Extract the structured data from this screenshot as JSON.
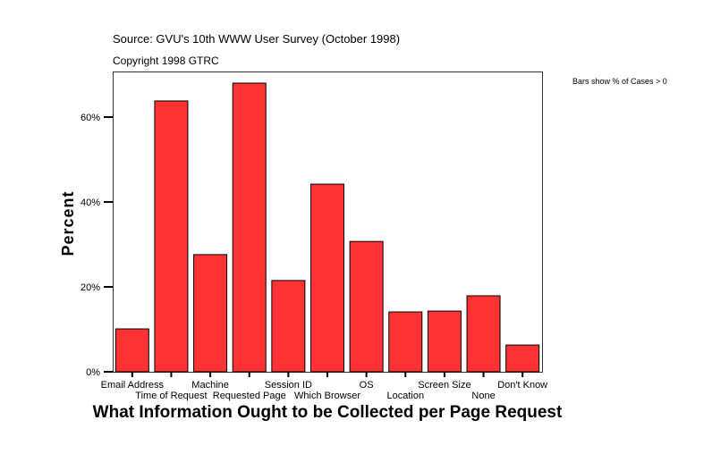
{
  "chart_data": {
    "type": "bar",
    "source": "Source: GVU's 10th WWW User Survey (October 1998)",
    "copyright": "Copyright 1998 GTRC",
    "note": "Bars show % of Cases > 0",
    "title": "What Information Ought to be Collected per Page Request",
    "ylabel": "Percent",
    "xlabel": "",
    "categories": [
      "Email Address",
      "Time of Request",
      "Machine",
      "Requested Page",
      "Session ID",
      "Which Browser",
      "OS",
      "Location",
      "Screen Size",
      "None",
      "Don't Know"
    ],
    "values": [
      10.1,
      63.8,
      27.6,
      68.0,
      21.5,
      44.2,
      30.7,
      14.1,
      14.3,
      17.9,
      6.3
    ],
    "ylim": [
      0,
      70.7
    ],
    "yticks": [
      0,
      20,
      40,
      60
    ],
    "ytick_labels": [
      "0%",
      "20%",
      "40%",
      "60%"
    ],
    "grid": false,
    "bar_color": "#ff3333"
  }
}
